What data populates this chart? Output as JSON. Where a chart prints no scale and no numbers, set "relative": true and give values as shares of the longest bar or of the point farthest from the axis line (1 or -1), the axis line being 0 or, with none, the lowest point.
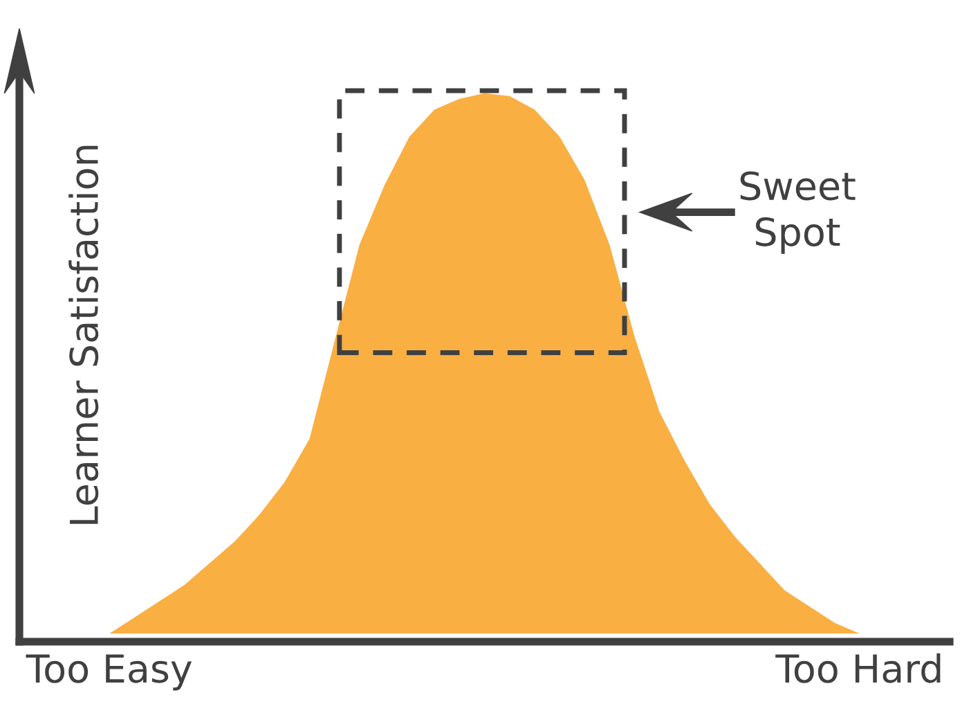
{
  "chart_data": {
    "type": "area",
    "relative": true,
    "ylabel": "Learner Satisfaction",
    "categories": [
      "Too Easy",
      null,
      null,
      null,
      null,
      null,
      null,
      null,
      null,
      null,
      null,
      null,
      null,
      null,
      null,
      null,
      null,
      null,
      null,
      null,
      null,
      null,
      null,
      null,
      null,
      null,
      null,
      null,
      null,
      null,
      "Too Hard"
    ],
    "series": [
      {
        "color": "#f9af42",
        "values": [
          0,
          0.03,
          0.06,
          0.09,
          0.13,
          0.17,
          0.22,
          0.28,
          0.36,
          0.54,
          0.72,
          0.83,
          0.92,
          0.97,
          0.99,
          1,
          0.995,
          0.97,
          0.92,
          0.84,
          0.72,
          0.55,
          0.41,
          0.32,
          0.24,
          0.18,
          0.13,
          0.08,
          0.05,
          0.02,
          0
        ]
      }
    ],
    "annotations": [
      "Sweet\nSpot"
    ],
    "grid": false,
    "legend": false
  }
}
